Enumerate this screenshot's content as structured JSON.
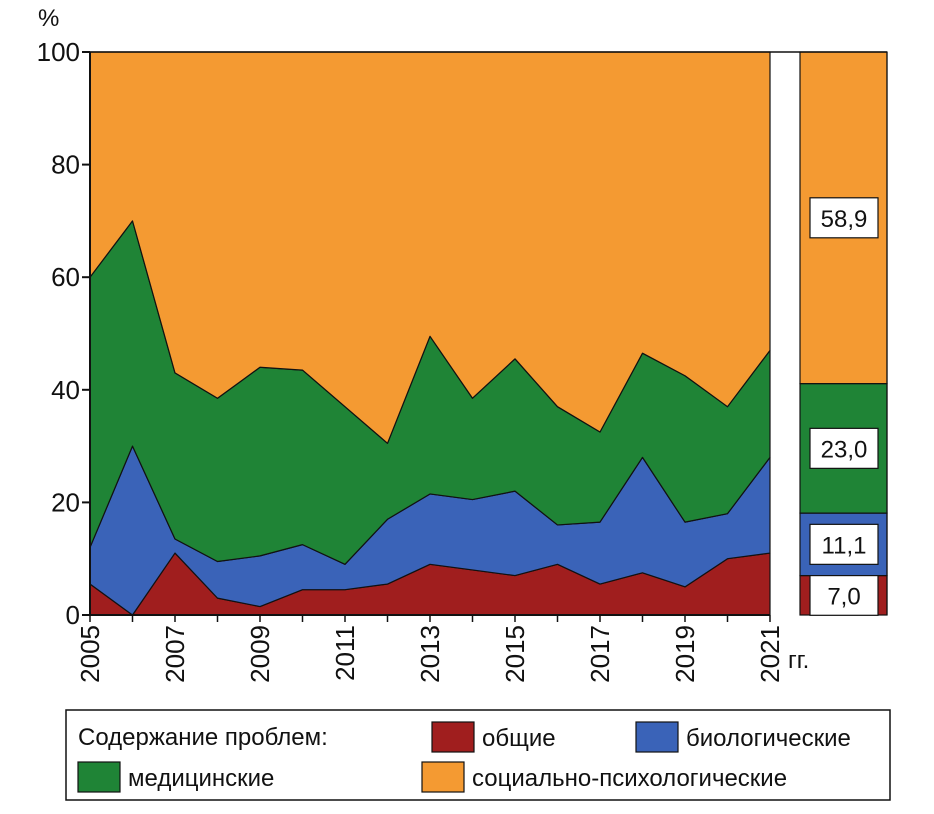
{
  "chart_data": {
    "type": "area",
    "stacked": true,
    "ylabel": "%",
    "xlabel": "гг.",
    "ylim": [
      0,
      100
    ],
    "yticks": [
      "0",
      "20",
      "40",
      "60",
      "80",
      "100"
    ],
    "x": [
      2005,
      2006,
      2007,
      2008,
      2009,
      2010,
      2011,
      2012,
      2013,
      2014,
      2015,
      2016,
      2017,
      2018,
      2019,
      2020,
      2021
    ],
    "xtick_labels": [
      "2005",
      "2007",
      "2009",
      "2011",
      "2013",
      "2015",
      "2017",
      "2019",
      "2021"
    ],
    "series": [
      {
        "name": "общие",
        "color": "#a01e1e",
        "values": [
          5.5,
          0,
          11,
          3,
          1.5,
          4.5,
          4.5,
          5.5,
          9,
          8,
          7,
          9,
          5.5,
          7.5,
          5,
          10,
          11
        ]
      },
      {
        "name": "биологические",
        "color": "#3a63b8",
        "values": [
          6.5,
          30,
          2.5,
          6.5,
          9,
          8,
          4.5,
          11.5,
          12.5,
          12.5,
          15,
          7,
          11,
          20.5,
          11.5,
          8,
          17
        ]
      },
      {
        "name": "медицинские",
        "color": "#1f8436",
        "values": [
          48,
          40,
          29.5,
          29,
          33.5,
          31,
          28,
          13.5,
          28,
          18,
          23.5,
          21,
          16,
          18.5,
          26,
          19,
          19
        ]
      },
      {
        "name": "социально-психологические",
        "color": "#f49a32",
        "values": [
          40,
          30,
          57,
          61.5,
          56,
          56.5,
          63,
          69.5,
          50.5,
          61.5,
          54.5,
          63,
          67.5,
          53.5,
          57.5,
          63,
          53
        ]
      }
    ],
    "summary_bar": {
      "values": [
        7.0,
        11.1,
        23.0,
        58.9
      ],
      "labels": [
        "7,0",
        "11,1",
        "23,0",
        "58,9"
      ]
    },
    "legend": {
      "title": "Содержание проблем:",
      "placement": "bottom"
    }
  }
}
